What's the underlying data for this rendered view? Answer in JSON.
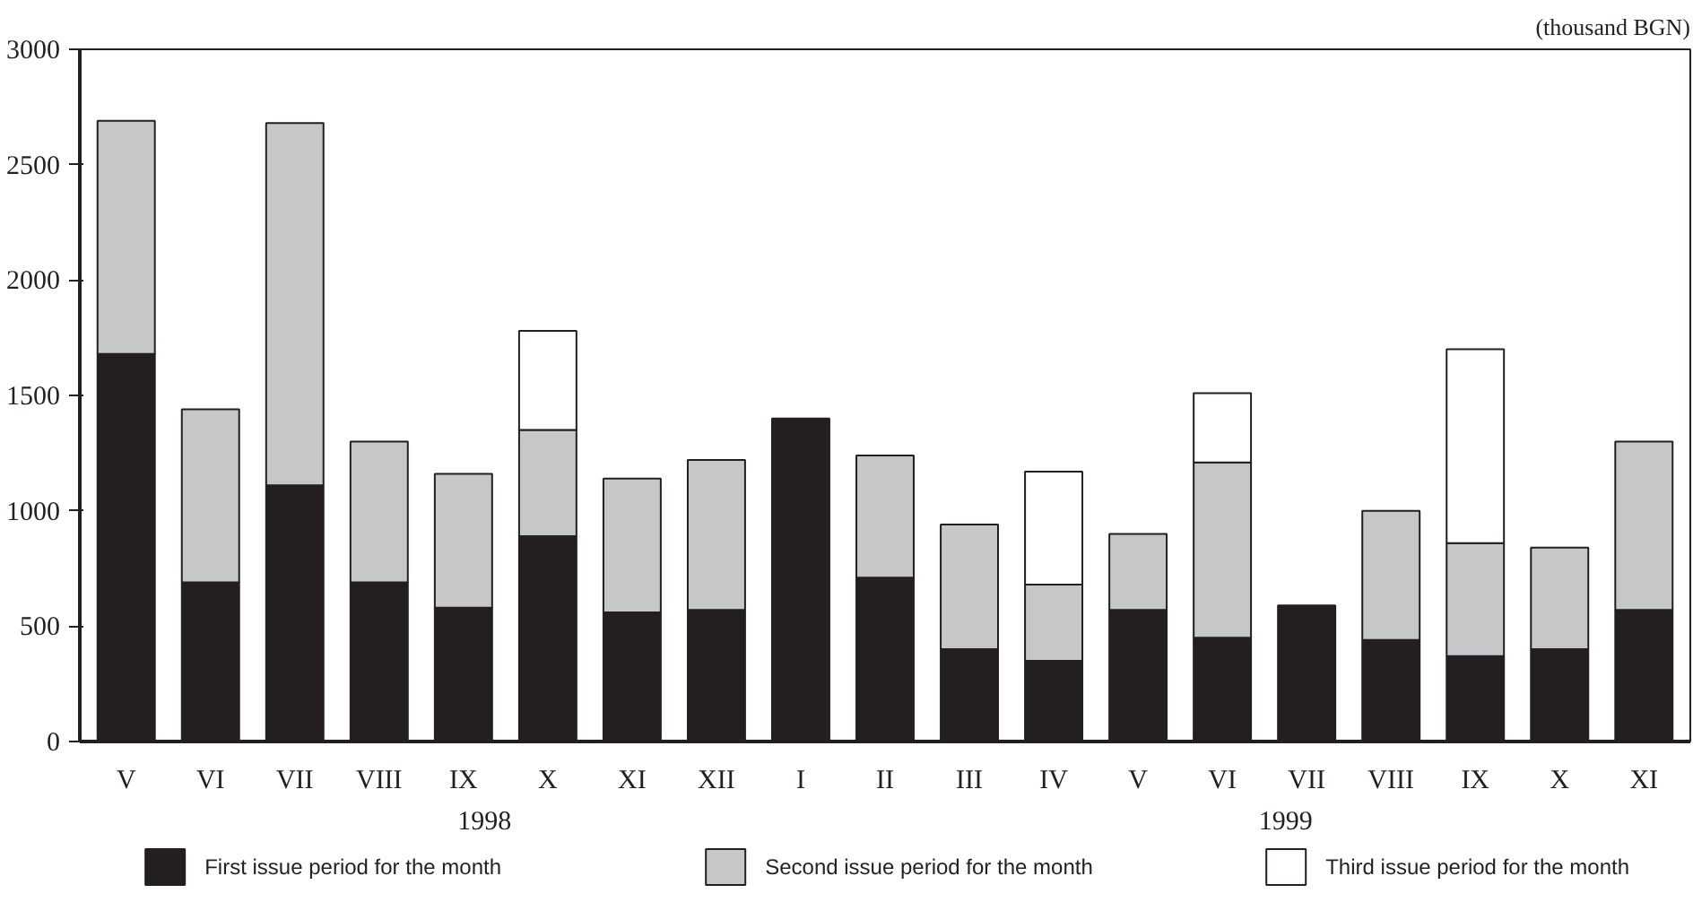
{
  "chart_data": {
    "type": "bar",
    "stacked": true,
    "ylabel": "(thousand BGN)",
    "categories": [
      "V",
      "VI",
      "VII",
      "VIII",
      "IX",
      "X",
      "XI",
      "XII",
      "I",
      "II",
      "III",
      "IV",
      "V",
      "VI",
      "VII",
      "VIII",
      "IX",
      "X",
      "XI"
    ],
    "series": [
      {
        "name": "First issue period for the month",
        "color": "#231f20",
        "values": [
          1680,
          690,
          1110,
          690,
          580,
          890,
          560,
          570,
          1400,
          710,
          400,
          350,
          570,
          450,
          590,
          440,
          370,
          400,
          570
        ]
      },
      {
        "name": "Second issue period for the month",
        "color": "#c6c7c9",
        "values": [
          1010,
          750,
          1570,
          610,
          580,
          460,
          580,
          650,
          null,
          530,
          540,
          330,
          330,
          760,
          null,
          560,
          490,
          440,
          730
        ]
      },
      {
        "name": "Third issue period for the month",
        "color": "#ffffff",
        "values": [
          null,
          null,
          null,
          null,
          null,
          430,
          null,
          null,
          null,
          null,
          null,
          490,
          null,
          300,
          null,
          null,
          840,
          null,
          null
        ]
      }
    ],
    "ylim": [
      0,
      3000
    ],
    "yticks": [
      0,
      500,
      1000,
      1500,
      2000,
      2500,
      3000
    ],
    "annotations": [
      "1998",
      "1999"
    ],
    "grid": false,
    "legend": "bottom"
  }
}
